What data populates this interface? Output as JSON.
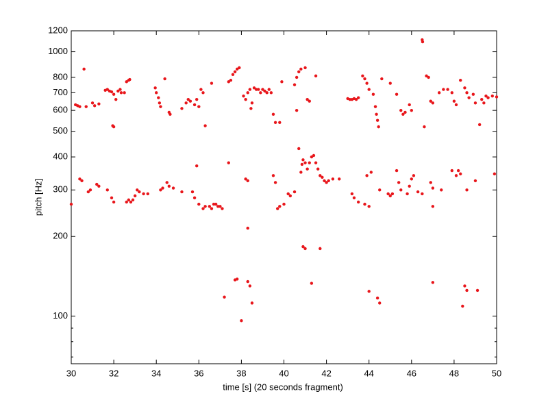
{
  "chart_data": {
    "type": "scatter",
    "xlabel": "time [s] (20 seconds fragment)",
    "ylabel": "pitch [Hz]",
    "color": "#e8161b",
    "log_y": true,
    "xlim": [
      30,
      50
    ],
    "ylim": [
      66,
      1200
    ],
    "xticks": [
      30,
      32,
      34,
      36,
      38,
      40,
      42,
      44,
      46,
      48,
      50
    ],
    "yticks": [
      100,
      200,
      300,
      400,
      500,
      600,
      700,
      800,
      1000,
      1200
    ],
    "yminorticks": [
      70,
      80,
      90
    ],
    "x": [
      30.2,
      30.3,
      30.4,
      30.6,
      30.7,
      31.0,
      31.1,
      31.3,
      31.6,
      31.7,
      31.8,
      31.9,
      32.0,
      32.1,
      32.2,
      32.3,
      32.35,
      31.95,
      32.0,
      32.5,
      32.6,
      32.7,
      32.75,
      33.95,
      34.0,
      34.1,
      34.15,
      34.2,
      34.4,
      34.6,
      34.65,
      35.2,
      35.4,
      35.5,
      35.6,
      35.8,
      35.9,
      36.0,
      36.1,
      36.2,
      36.3,
      36.6,
      37.4,
      37.5,
      37.6,
      37.7,
      37.8,
      37.9,
      38.1,
      38.2,
      38.3,
      38.4,
      38.5,
      38.45,
      38.6,
      38.7,
      38.8,
      38.9,
      39.0,
      39.1,
      39.2,
      39.3,
      39.4,
      39.5,
      39.6,
      39.8,
      39.9,
      40.5,
      40.6,
      40.7,
      40.8,
      41.0,
      40.6,
      41.1,
      41.2,
      41.5,
      43.0,
      43.1,
      43.2,
      43.3,
      43.4,
      43.5,
      43.7,
      43.8,
      43.9,
      44.0,
      44.2,
      44.3,
      44.35,
      44.4,
      44.45,
      44.6,
      45.0,
      45.3,
      45.5,
      45.6,
      45.7,
      45.9,
      46.0,
      46.5,
      46.52,
      46.6,
      46.7,
      46.8,
      46.9,
      47.0,
      47.3,
      47.5,
      47.7,
      47.9,
      48.0,
      48.1,
      48.3,
      48.5,
      48.6,
      48.7,
      48.9,
      49.0,
      49.2,
      49.3,
      49.4,
      49.5,
      49.6,
      49.8,
      50.0,
      30.0,
      30.4,
      30.5,
      30.8,
      30.9,
      31.2,
      31.3,
      31.7,
      31.9,
      32.0,
      32.6,
      32.7,
      32.8,
      32.9,
      33.0,
      33.1,
      33.2,
      33.4,
      33.6,
      34.2,
      34.3,
      34.5,
      34.6,
      34.8,
      35.2,
      35.7,
      35.8,
      35.9,
      36.0,
      36.2,
      36.3,
      36.5,
      36.6,
      36.7,
      36.8,
      36.9,
      37.0,
      37.1,
      37.4,
      38.2,
      38.3,
      38.3,
      39.5,
      39.6,
      39.7,
      39.8,
      40.0,
      40.2,
      40.3,
      40.5,
      40.7,
      40.8,
      40.85,
      40.9,
      41.0,
      41.1,
      41.2,
      41.3,
      41.4,
      41.5,
      41.6,
      41.7,
      41.8,
      41.9,
      42.0,
      42.1,
      42.3,
      42.6,
      43.2,
      43.3,
      43.5,
      43.8,
      44.0,
      43.9,
      44.1,
      44.5,
      44.9,
      45.0,
      45.1,
      45.3,
      45.4,
      45.5,
      45.8,
      45.9,
      46.0,
      46.1,
      46.3,
      46.5,
      46.9,
      47.0,
      47.0,
      47.4,
      47.9,
      48.1,
      48.2,
      48.3,
      48.6,
      49.0,
      49.9,
      37.2,
      37.7,
      37.8,
      38.0,
      38.3,
      38.4,
      38.5,
      40.9,
      41.0,
      41.3,
      41.7,
      44.0,
      44.4,
      44.5,
      47.0,
      48.4,
      48.5,
      48.6,
      49.1
    ],
    "values": [
      630,
      625,
      620,
      860,
      620,
      640,
      625,
      635,
      715,
      720,
      710,
      705,
      690,
      660,
      710,
      720,
      700,
      525,
      520,
      700,
      770,
      780,
      785,
      730,
      700,
      670,
      640,
      620,
      790,
      590,
      580,
      610,
      640,
      660,
      650,
      630,
      660,
      620,
      720,
      700,
      525,
      760,
      770,
      780,
      820,
      840,
      860,
      870,
      680,
      660,
      700,
      720,
      640,
      610,
      730,
      720,
      720,
      700,
      720,
      710,
      700,
      720,
      700,
      580,
      540,
      540,
      770,
      750,
      800,
      840,
      860,
      870,
      600,
      660,
      650,
      810,
      665,
      660,
      660,
      665,
      660,
      670,
      810,
      790,
      760,
      720,
      690,
      620,
      580,
      550,
      520,
      790,
      760,
      690,
      600,
      580,
      590,
      630,
      600,
      1110,
      1090,
      520,
      810,
      800,
      650,
      640,
      700,
      720,
      720,
      700,
      650,
      630,
      780,
      730,
      700,
      670,
      690,
      640,
      530,
      660,
      640,
      680,
      670,
      680,
      675,
      265,
      330,
      325,
      295,
      300,
      315,
      310,
      300,
      280,
      270,
      270,
      275,
      270,
      275,
      285,
      300,
      295,
      290,
      290,
      300,
      305,
      320,
      310,
      305,
      295,
      295,
      280,
      370,
      265,
      255,
      260,
      260,
      255,
      265,
      265,
      260,
      260,
      255,
      380,
      330,
      325,
      215,
      340,
      320,
      255,
      260,
      265,
      290,
      285,
      295,
      430,
      350,
      375,
      390,
      380,
      360,
      380,
      400,
      405,
      380,
      360,
      340,
      335,
      325,
      320,
      325,
      330,
      330,
      290,
      280,
      270,
      265,
      260,
      340,
      350,
      300,
      290,
      285,
      290,
      355,
      320,
      300,
      290,
      310,
      330,
      340,
      295,
      290,
      320,
      305,
      260,
      300,
      355,
      340,
      355,
      345,
      300,
      325,
      345,
      118,
      137,
      138,
      96,
      135,
      130,
      112,
      183,
      180,
      133,
      180,
      124,
      117,
      112,
      134,
      109,
      130,
      125,
      125
    ]
  }
}
